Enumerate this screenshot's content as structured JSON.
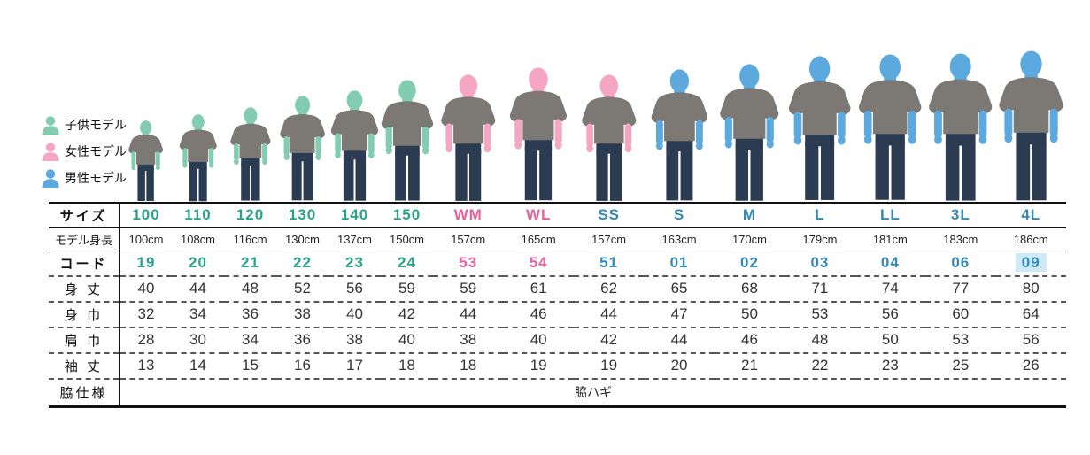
{
  "colors": {
    "child_text": "#2aa38b",
    "female_text": "#e2639e",
    "male_text": "#3389b9",
    "child_skin": "#82ccb2",
    "female_skin": "#f4a6c3",
    "male_skin": "#5ba9de",
    "tshirt": "#7c7974",
    "jeans": "#2b3c52",
    "code_highlight": "#cdeaf6"
  },
  "legend": {
    "items": [
      {
        "label": "子供モデル",
        "group": "child",
        "color": "#82ccb2"
      },
      {
        "label": "女性モデル",
        "group": "female",
        "color": "#f4a6c3"
      },
      {
        "label": "男性モデル",
        "group": "male",
        "color": "#5ba9de"
      }
    ]
  },
  "table": {
    "row_labels": {
      "size": "サイズ",
      "model_height": "モデル身長",
      "code": "コード",
      "body_length": "身 丈",
      "body_width": "身 巾",
      "shoulder_width": "肩 巾",
      "sleeve_length": "袖 丈",
      "side_spec": "脇仕様"
    },
    "side_spec_value": "脇ハギ",
    "columns": [
      {
        "size": "100",
        "text_group": "child",
        "figure_group": "child",
        "model_height": "100cm",
        "model_height_cm": 100,
        "code": "19",
        "body_length": 40,
        "body_width": 32,
        "shoulder_width": 28,
        "sleeve_length": 13,
        "code_highlight": false
      },
      {
        "size": "110",
        "text_group": "child",
        "figure_group": "child",
        "model_height": "108cm",
        "model_height_cm": 108,
        "code": "20",
        "body_length": 44,
        "body_width": 34,
        "shoulder_width": 30,
        "sleeve_length": 14,
        "code_highlight": false
      },
      {
        "size": "120",
        "text_group": "child",
        "figure_group": "child",
        "model_height": "116cm",
        "model_height_cm": 116,
        "code": "21",
        "body_length": 48,
        "body_width": 36,
        "shoulder_width": 34,
        "sleeve_length": 15,
        "code_highlight": false
      },
      {
        "size": "130",
        "text_group": "child",
        "figure_group": "child",
        "model_height": "130cm",
        "model_height_cm": 130,
        "code": "22",
        "body_length": 52,
        "body_width": 38,
        "shoulder_width": 36,
        "sleeve_length": 16,
        "code_highlight": false
      },
      {
        "size": "140",
        "text_group": "child",
        "figure_group": "child",
        "model_height": "137cm",
        "model_height_cm": 137,
        "code": "23",
        "body_length": 56,
        "body_width": 40,
        "shoulder_width": 38,
        "sleeve_length": 17,
        "code_highlight": false
      },
      {
        "size": "150",
        "text_group": "child",
        "figure_group": "child",
        "model_height": "150cm",
        "model_height_cm": 150,
        "code": "24",
        "body_length": 59,
        "body_width": 42,
        "shoulder_width": 40,
        "sleeve_length": 18,
        "code_highlight": false
      },
      {
        "size": "WM",
        "text_group": "female",
        "figure_group": "female",
        "model_height": "157cm",
        "model_height_cm": 157,
        "code": "53",
        "body_length": 59,
        "body_width": 44,
        "shoulder_width": 38,
        "sleeve_length": 18,
        "code_highlight": false
      },
      {
        "size": "WL",
        "text_group": "female",
        "figure_group": "female",
        "model_height": "165cm",
        "model_height_cm": 165,
        "code": "54",
        "body_length": 61,
        "body_width": 46,
        "shoulder_width": 40,
        "sleeve_length": 19,
        "code_highlight": false
      },
      {
        "size": "SS",
        "text_group": "male",
        "figure_group": "female",
        "model_height": "157cm",
        "model_height_cm": 157,
        "code": "51",
        "body_length": 62,
        "body_width": 44,
        "shoulder_width": 42,
        "sleeve_length": 19,
        "code_highlight": false
      },
      {
        "size": "S",
        "text_group": "male",
        "figure_group": "male",
        "model_height": "163cm",
        "model_height_cm": 163,
        "code": "01",
        "body_length": 65,
        "body_width": 47,
        "shoulder_width": 44,
        "sleeve_length": 20,
        "code_highlight": false
      },
      {
        "size": "M",
        "text_group": "male",
        "figure_group": "male",
        "model_height": "170cm",
        "model_height_cm": 170,
        "code": "02",
        "body_length": 68,
        "body_width": 50,
        "shoulder_width": 46,
        "sleeve_length": 21,
        "code_highlight": false
      },
      {
        "size": "L",
        "text_group": "male",
        "figure_group": "male",
        "model_height": "179cm",
        "model_height_cm": 179,
        "code": "03",
        "body_length": 71,
        "body_width": 53,
        "shoulder_width": 48,
        "sleeve_length": 22,
        "code_highlight": false
      },
      {
        "size": "LL",
        "text_group": "male",
        "figure_group": "male",
        "model_height": "181cm",
        "model_height_cm": 181,
        "code": "04",
        "body_length": 74,
        "body_width": 56,
        "shoulder_width": 50,
        "sleeve_length": 23,
        "code_highlight": false
      },
      {
        "size": "3L",
        "text_group": "male",
        "figure_group": "male",
        "model_height": "183cm",
        "model_height_cm": 183,
        "code": "06",
        "body_length": 77,
        "body_width": 60,
        "shoulder_width": 53,
        "sleeve_length": 25,
        "code_highlight": false
      },
      {
        "size": "4L",
        "text_group": "male",
        "figure_group": "male",
        "model_height": "186cm",
        "model_height_cm": 186,
        "code": "09",
        "body_length": 80,
        "body_width": 64,
        "shoulder_width": 56,
        "sleeve_length": 26,
        "code_highlight": true
      }
    ]
  }
}
